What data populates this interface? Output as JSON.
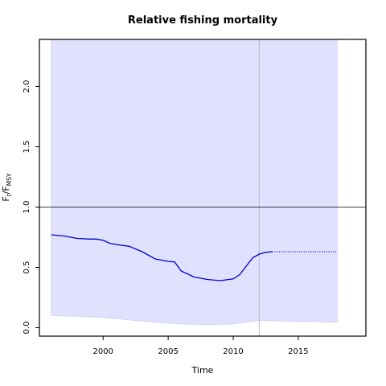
{
  "chart_data": {
    "type": "line",
    "title": "Relative fishing mortality",
    "xlabel": "Time",
    "ylabel_main": "F",
    "ylabel_sub1": "t",
    "ylabel_mid": "/F",
    "ylabel_sub2": "MSY",
    "xlim": [
      1995.1,
      2020.2
    ],
    "ylim": [
      -0.07,
      2.39
    ],
    "x_ticks": [
      2000,
      2005,
      2010,
      2015
    ],
    "x_tick_labels": [
      "2000",
      "2005",
      "2010",
      "2015"
    ],
    "y_ticks": [
      0.0,
      0.5,
      1.0,
      1.5,
      2.0
    ],
    "y_tick_labels": [
      "0.0",
      "0.5",
      "1.0",
      "1.5",
      "2.0"
    ],
    "reference_line": 1.0,
    "vertical_line_x": 2012,
    "series": [
      {
        "role": "estimate",
        "color": "#0000cc",
        "x": [
          1996.0,
          1997.0,
          1998.0,
          1999.0,
          1999.5,
          2000.0,
          2000.5,
          2001.0,
          2002.0,
          2003.0,
          2004.0,
          2005.0,
          2005.5,
          2006.0,
          2007.0,
          2008.0,
          2009.0,
          2010.0,
          2010.5,
          2011.0,
          2011.5,
          2012.0,
          2012.5,
          2013.0
        ],
        "y": [
          0.77,
          0.76,
          0.74,
          0.735,
          0.735,
          0.725,
          0.7,
          0.69,
          0.675,
          0.63,
          0.57,
          0.55,
          0.545,
          0.47,
          0.42,
          0.4,
          0.39,
          0.405,
          0.44,
          0.51,
          0.58,
          0.61,
          0.625,
          0.63
        ]
      },
      {
        "role": "prediction",
        "color": "#0000cc",
        "style": "dotted",
        "x": [
          2013.0,
          2018.0
        ],
        "y": [
          0.63,
          0.63
        ]
      }
    ],
    "confidence_band": {
      "color": "#e0e0ff",
      "x": [
        1996.0,
        1998.0,
        2000.0,
        2002.0,
        2004.0,
        2006.0,
        2008.0,
        2010.0,
        2012.0,
        2014.0,
        2016.0,
        2018.0
      ],
      "lower": [
        0.1,
        0.095,
        0.085,
        0.065,
        0.045,
        0.03,
        0.025,
        0.03,
        0.06,
        0.055,
        0.05,
        0.045
      ],
      "upper": [
        2.39,
        2.39,
        2.39,
        2.39,
        2.39,
        2.39,
        2.39,
        2.39,
        2.39,
        2.39,
        2.39,
        2.39
      ]
    }
  }
}
